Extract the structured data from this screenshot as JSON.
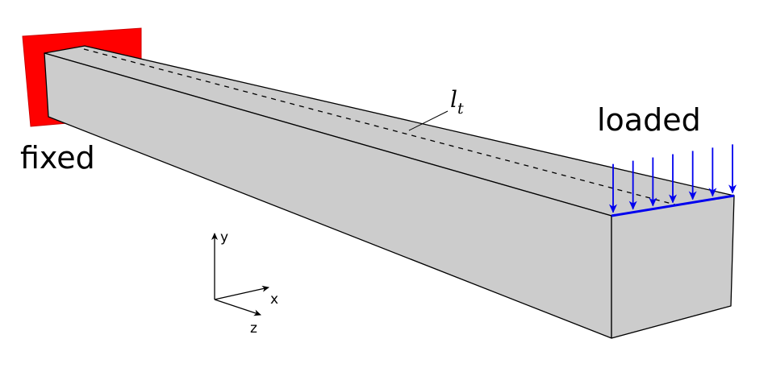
{
  "labels": {
    "fixed": "fixed",
    "loaded": "loaded",
    "length_symbol": "l",
    "length_subscript": "t"
  },
  "axes": {
    "x": "x",
    "y": "y",
    "z": "z"
  },
  "colors": {
    "beam_fill": "#cccccc",
    "beam_stroke": "#000000",
    "support_fill": "#ff0000",
    "load_color": "#0000ee",
    "background": "#ffffff"
  },
  "load_arrow_count": 7
}
